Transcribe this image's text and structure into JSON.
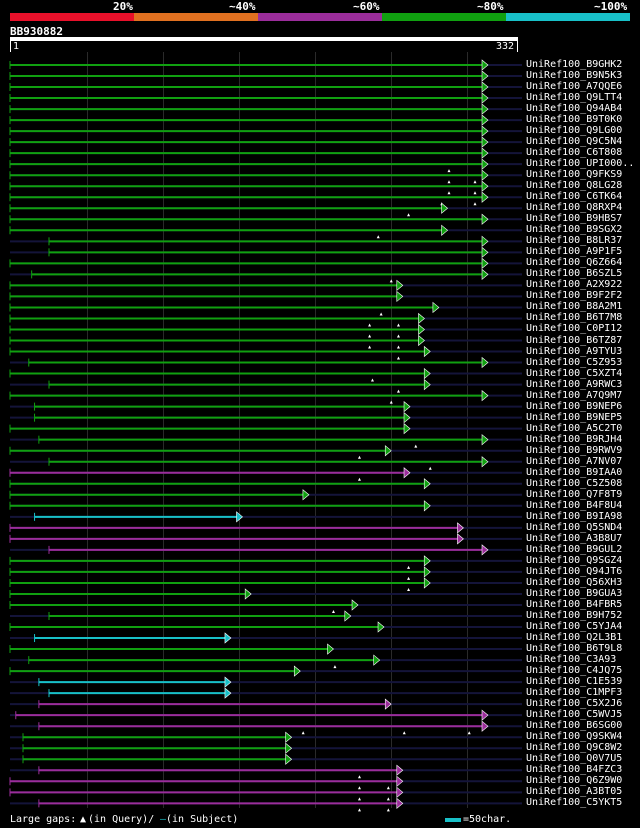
{
  "query_name": "BB930882",
  "ruler": {
    "start_label": "1",
    "end_label": "332"
  },
  "identity_scale": [
    {
      "label": "20%",
      "color": "#e8102a"
    },
    {
      "label": "~40%",
      "color": "#e07020"
    },
    {
      "label": "~60%",
      "color": "#9b2d9b"
    },
    {
      "label": "~80%",
      "color": "#10a010"
    },
    {
      "label": "~100%",
      "color": "#18c0c8"
    }
  ],
  "footer": {
    "gaps_label": "Large gaps:",
    "query_gap_label": "(in Query)/",
    "subject_gap_label": "(in Subject)",
    "scale_label": "=50char."
  },
  "chart_data": {
    "type": "alignment-overview",
    "query_length": 332,
    "hits": [
      {
        "name": "UniRef100_B9GHK2",
        "start": 1,
        "end": 332,
        "color": "#10a010"
      },
      {
        "name": "UniRef100_B9N5K3",
        "start": 1,
        "end": 332,
        "color": "#10a010"
      },
      {
        "name": "UniRef100_A7QQE6",
        "start": 1,
        "end": 332,
        "color": "#10a010"
      },
      {
        "name": "UniRef100_Q9LTT4",
        "start": 1,
        "end": 332,
        "color": "#10a010"
      },
      {
        "name": "UniRef100_Q94AB4",
        "start": 1,
        "end": 332,
        "color": "#10a010"
      },
      {
        "name": "UniRef100_B9T0K0",
        "start": 1,
        "end": 332,
        "color": "#10a010"
      },
      {
        "name": "UniRef100_Q9LG00",
        "start": 1,
        "end": 332,
        "color": "#10a010"
      },
      {
        "name": "UniRef100_Q9C5N4",
        "start": 1,
        "end": 332,
        "color": "#10a010"
      },
      {
        "name": "UniRef100_C6T808",
        "start": 1,
        "end": 332,
        "color": "#10a010"
      },
      {
        "name": "UniRef100_UPI000..",
        "start": 1,
        "end": 332,
        "color": "#10a010",
        "gaps": [
          305
        ]
      },
      {
        "name": "UniRef100_Q9FKS9",
        "start": 1,
        "end": 332,
        "color": "#10a010",
        "gaps": [
          305,
          323
        ]
      },
      {
        "name": "UniRef100_Q8LG28",
        "start": 1,
        "end": 332,
        "color": "#10a010",
        "gaps": [
          305,
          323
        ]
      },
      {
        "name": "UniRef100_C6TK64",
        "start": 1,
        "end": 332,
        "color": "#10a010",
        "gaps": [
          300,
          323
        ]
      },
      {
        "name": "UniRef100_Q8RXP4",
        "start": 1,
        "end": 304,
        "color": "#10a010",
        "gaps": [
          277
        ]
      },
      {
        "name": "UniRef100_B9HBS7",
        "start": 1,
        "end": 332,
        "color": "#10a010"
      },
      {
        "name": "UniRef100_B9SGX2",
        "start": 1,
        "end": 304,
        "color": "#10a010",
        "gaps": [
          256
        ]
      },
      {
        "name": "UniRef100_B8LR37",
        "start": 28,
        "end": 332,
        "color": "#10a010"
      },
      {
        "name": "UniRef100_A9P1F5",
        "start": 28,
        "end": 332,
        "color": "#10a010"
      },
      {
        "name": "UniRef100_Q6Z664",
        "start": 1,
        "end": 332,
        "color": "#10a010"
      },
      {
        "name": "UniRef100_B6SZL5",
        "start": 16,
        "end": 332,
        "color": "#10a010",
        "gaps": [
          265
        ]
      },
      {
        "name": "UniRef100_A2X922",
        "start": 1,
        "end": 273,
        "color": "#10a010"
      },
      {
        "name": "UniRef100_B9F2F2",
        "start": 1,
        "end": 273,
        "color": "#10a010"
      },
      {
        "name": "UniRef100_B8A2M1",
        "start": 1,
        "end": 298,
        "color": "#10a010",
        "gaps": [
          258
        ]
      },
      {
        "name": "UniRef100_B6T7M8",
        "start": 1,
        "end": 288,
        "color": "#10a010",
        "gaps": [
          250,
          270
        ]
      },
      {
        "name": "UniRef100_C0PI12",
        "start": 1,
        "end": 288,
        "color": "#10a010",
        "gaps": [
          250,
          270
        ]
      },
      {
        "name": "UniRef100_B6TZ87",
        "start": 1,
        "end": 288,
        "color": "#10a010",
        "gaps": [
          250,
          270
        ]
      },
      {
        "name": "UniRef100_A9TYU3",
        "start": 1,
        "end": 292,
        "color": "#10a010",
        "gaps": [
          270
        ]
      },
      {
        "name": "UniRef100_C5Z953",
        "start": 14,
        "end": 332,
        "color": "#10a010"
      },
      {
        "name": "UniRef100_C5XZT4",
        "start": 1,
        "end": 292,
        "color": "#10a010",
        "gaps": [
          252
        ]
      },
      {
        "name": "UniRef100_A9RWC3",
        "start": 28,
        "end": 292,
        "color": "#10a010",
        "gaps": [
          270
        ]
      },
      {
        "name": "UniRef100_A7Q9M7",
        "start": 1,
        "end": 332,
        "color": "#10a010",
        "gaps": [
          265
        ]
      },
      {
        "name": "UniRef100_B9NEP6",
        "start": 18,
        "end": 278,
        "color": "#10a010"
      },
      {
        "name": "UniRef100_B9NEP5",
        "start": 18,
        "end": 278,
        "color": "#10a010"
      },
      {
        "name": "UniRef100_A5C2T0",
        "start": 1,
        "end": 278,
        "color": "#10a010"
      },
      {
        "name": "UniRef100_B9RJH4",
        "start": 21,
        "end": 332,
        "color": "#10a010",
        "gaps": [
          282
        ]
      },
      {
        "name": "UniRef100_B9RWV9",
        "start": 1,
        "end": 265,
        "color": "#10a010",
        "gaps": [
          243
        ]
      },
      {
        "name": "UniRef100_A7NV07",
        "start": 28,
        "end": 332,
        "color": "#10a010",
        "gaps": [
          292
        ]
      },
      {
        "name": "UniRef100_B9IAA0",
        "start": 1,
        "end": 278,
        "color": "#9b2d9b",
        "gaps": [
          243
        ]
      },
      {
        "name": "UniRef100_C5Z508",
        "start": 1,
        "end": 292,
        "color": "#10a010"
      },
      {
        "name": "UniRef100_Q7F8T9",
        "start": 1,
        "end": 208,
        "color": "#10a010"
      },
      {
        "name": "UniRef100_B4F8U4",
        "start": 1,
        "end": 292,
        "color": "#10a010"
      },
      {
        "name": "UniRef100_B9IA98",
        "start": 18,
        "end": 162,
        "color": "#18c0c8"
      },
      {
        "name": "UniRef100_Q5SND4",
        "start": 1,
        "end": 315,
        "color": "#9b2d9b"
      },
      {
        "name": "UniRef100_A3B8U7",
        "start": 1,
        "end": 315,
        "color": "#9b2d9b"
      },
      {
        "name": "UniRef100_B9GUL2",
        "start": 28,
        "end": 332,
        "color": "#9b2d9b"
      },
      {
        "name": "UniRef100_Q9SGZ4",
        "start": 1,
        "end": 292,
        "color": "#10a010",
        "gaps": [
          277
        ]
      },
      {
        "name": "UniRef100_Q94JT6",
        "start": 1,
        "end": 292,
        "color": "#10a010",
        "gaps": [
          277
        ]
      },
      {
        "name": "UniRef100_Q56XH3",
        "start": 1,
        "end": 292,
        "color": "#10a010",
        "gaps": [
          277
        ]
      },
      {
        "name": "UniRef100_B9GUA3",
        "start": 1,
        "end": 168,
        "color": "#10a010"
      },
      {
        "name": "UniRef100_B4FBR5",
        "start": 1,
        "end": 242,
        "color": "#10a010",
        "gaps": [
          225
        ]
      },
      {
        "name": "UniRef100_B9H752",
        "start": 28,
        "end": 237,
        "color": "#10a010"
      },
      {
        "name": "UniRef100_C5YJA4",
        "start": 1,
        "end": 260,
        "color": "#10a010"
      },
      {
        "name": "UniRef100_Q2L3B1",
        "start": 18,
        "end": 154,
        "color": "#18c0c8"
      },
      {
        "name": "UniRef100_B6T9L8",
        "start": 1,
        "end": 225,
        "color": "#10a010"
      },
      {
        "name": "UniRef100_C3A93",
        "start": 14,
        "end": 257,
        "color": "#10a010",
        "gaps": [
          226
        ]
      },
      {
        "name": "UniRef100_C4JQ75",
        "start": 1,
        "end": 202,
        "color": "#10a010"
      },
      {
        "name": "UniRef100_C1E539",
        "start": 21,
        "end": 154,
        "color": "#18c0c8"
      },
      {
        "name": "UniRef100_C1MPF3",
        "start": 28,
        "end": 154,
        "color": "#18c0c8"
      },
      {
        "name": "UniRef100_C5X2J6",
        "start": 21,
        "end": 265,
        "color": "#9b2d9b"
      },
      {
        "name": "UniRef100_C5WVJ5",
        "start": 5,
        "end": 332,
        "color": "#9b2d9b"
      },
      {
        "name": "UniRef100_B6SG00",
        "start": 21,
        "end": 332,
        "color": "#9b2d9b",
        "gaps": [
          204,
          274,
          319
        ]
      },
      {
        "name": "UniRef100_Q9SKW4",
        "start": 10,
        "end": 196,
        "color": "#10a010"
      },
      {
        "name": "UniRef100_Q9C8W2",
        "start": 10,
        "end": 196,
        "color": "#10a010"
      },
      {
        "name": "UniRef100_Q0V7U5",
        "start": 10,
        "end": 196,
        "color": "#10a010"
      },
      {
        "name": "UniRef100_B4FZC3",
        "start": 21,
        "end": 273,
        "color": "#9b2d9b",
        "gaps": [
          243
        ]
      },
      {
        "name": "UniRef100_Q6Z9W0",
        "start": 1,
        "end": 273,
        "color": "#9b2d9b",
        "gaps": [
          243,
          263
        ]
      },
      {
        "name": "UniRef100_A3BT05",
        "start": 1,
        "end": 273,
        "color": "#9b2d9b",
        "gaps": [
          243,
          263
        ]
      },
      {
        "name": "UniRef100_C5YKT5",
        "start": 21,
        "end": 273,
        "color": "#9b2d9b",
        "gaps": [
          243,
          263
        ]
      }
    ]
  }
}
